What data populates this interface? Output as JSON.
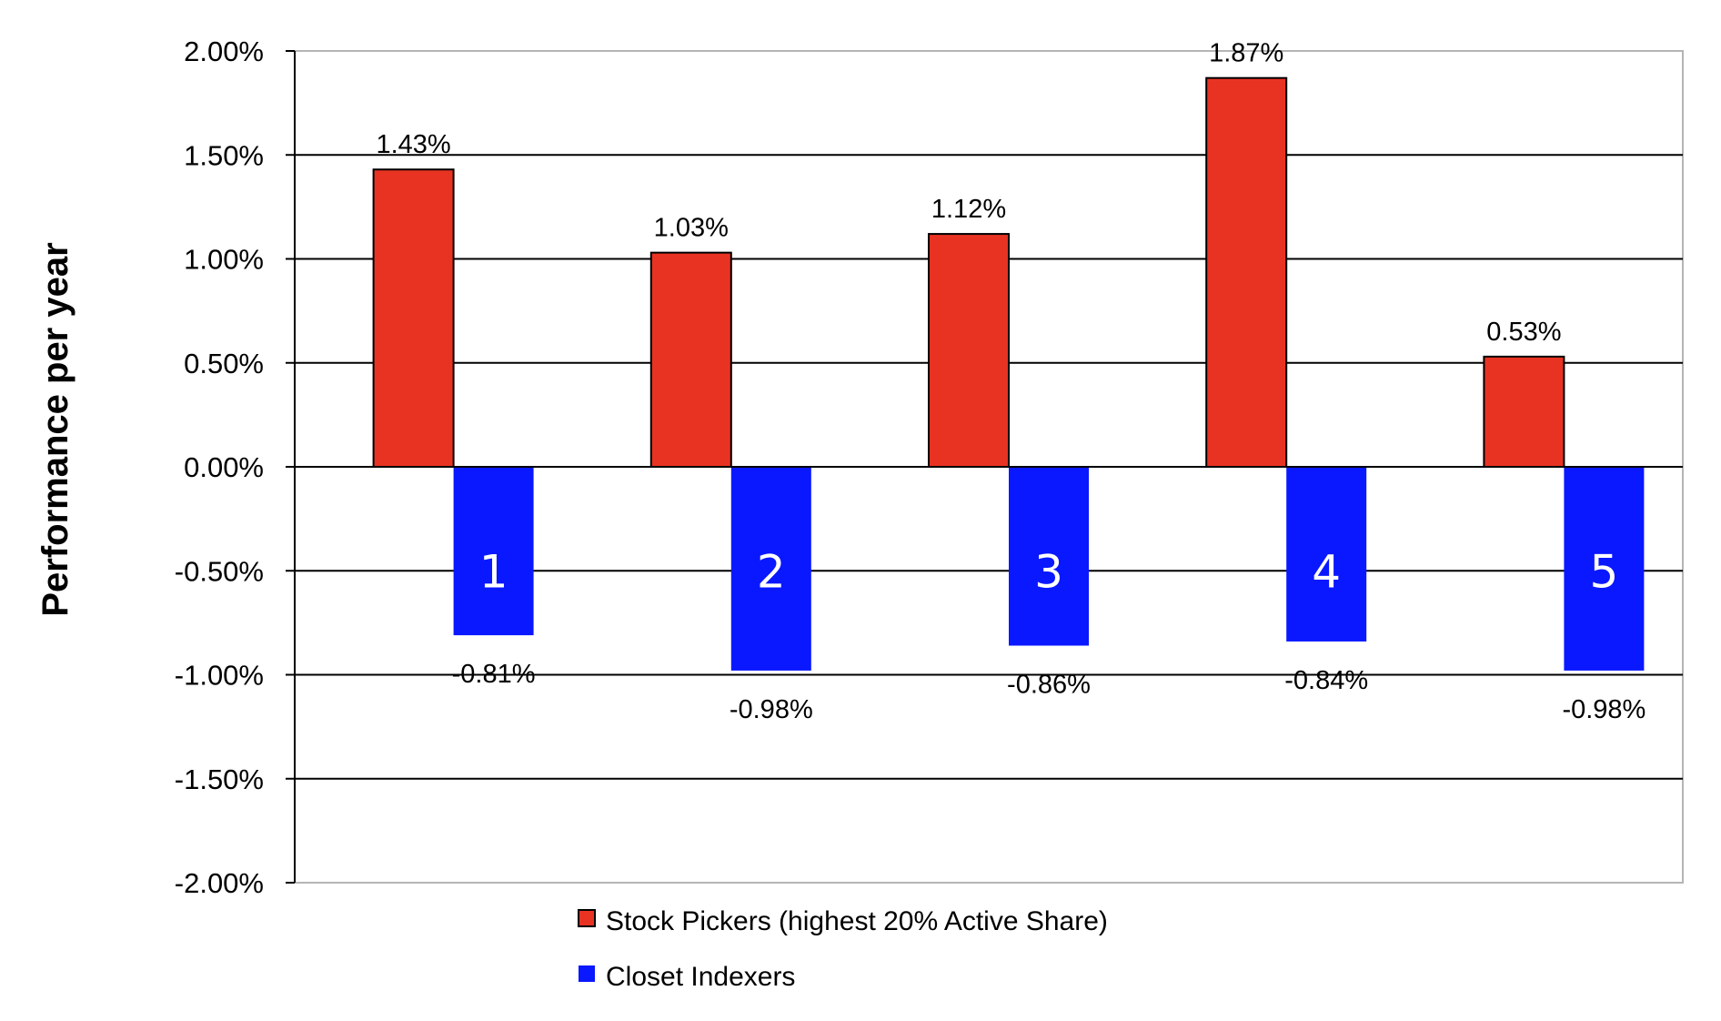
{
  "chart_data": {
    "type": "bar",
    "ylabel": "Performance per year",
    "categories": [
      "1",
      "2",
      "3",
      "4",
      "5"
    ],
    "ylim": [
      -0.02,
      0.02
    ],
    "yticks": [
      "2.00%",
      "1.50%",
      "1.00%",
      "0.50%",
      "0.00%",
      "-0.50%",
      "-1.00%",
      "-1.50%",
      "-2.00%"
    ],
    "grid": true,
    "legend_position": "bottom",
    "series": [
      {
        "name": "Stock Pickers (highest 20% Active Share)",
        "color": "#e83323",
        "values": [
          0.0143,
          0.0103,
          0.0112,
          0.0187,
          0.0053
        ],
        "labels": [
          "1.43%",
          "1.03%",
          "1.12%",
          "1.87%",
          "0.53%"
        ]
      },
      {
        "name": "Closet Indexers",
        "color": "#0a18ff",
        "values": [
          -0.0081,
          -0.0098,
          -0.0086,
          -0.0084,
          -0.0098
        ],
        "labels": [
          "-0.81%",
          "-0.98%",
          "-0.86%",
          "-0.84%",
          "-0.98%"
        ]
      }
    ]
  }
}
